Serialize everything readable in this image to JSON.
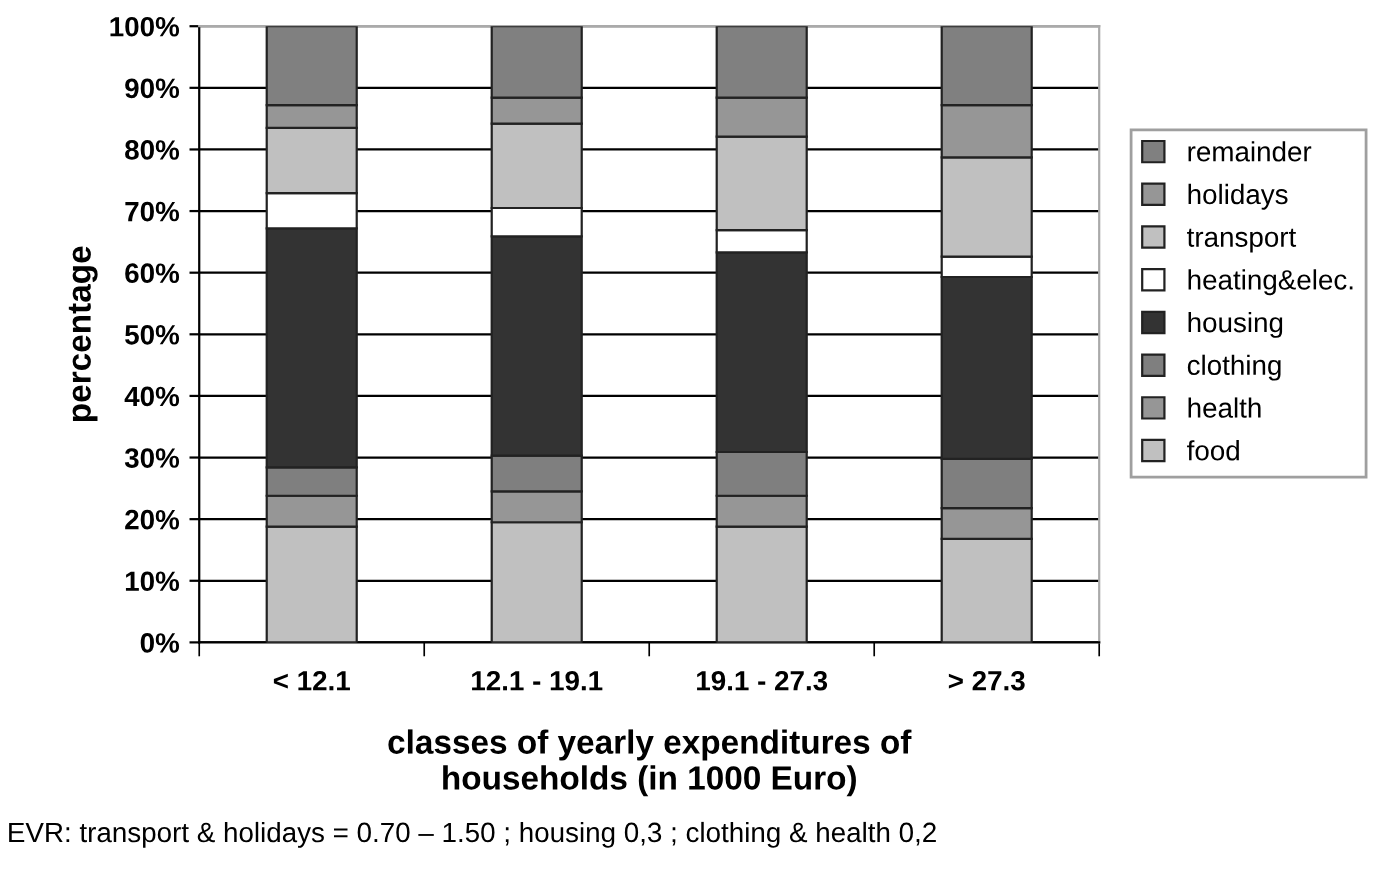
{
  "chart_data": {
    "type": "bar",
    "stacked": true,
    "xlabel": "classes of yearly expenditures of\nhouseholds (in 1000 Euro)",
    "ylabel": "percentage",
    "categories": [
      "< 12.1",
      "12.1 - 19.1",
      "19.1 - 27.3",
      "> 27.3"
    ],
    "series": [
      {
        "name": "food",
        "color": "#c0c0c0",
        "values": [
          18.8,
          19.5,
          18.8,
          16.8
        ]
      },
      {
        "name": "health",
        "color": "#969696",
        "values": [
          5.0,
          5.0,
          5.0,
          5.0
        ]
      },
      {
        "name": "clothing",
        "color": "#7f7f7f",
        "values": [
          4.6,
          5.8,
          7.1,
          8.0
        ]
      },
      {
        "name": "housing",
        "color": "#333333",
        "values": [
          38.8,
          35.6,
          32.4,
          29.5
        ]
      },
      {
        "name": "heating&elec.",
        "color": "#ffffff",
        "values": [
          5.7,
          4.6,
          3.6,
          3.3
        ]
      },
      {
        "name": "transport",
        "color": "#c0c0c0",
        "values": [
          10.6,
          13.7,
          15.2,
          16.1
        ]
      },
      {
        "name": "holidays",
        "color": "#969696",
        "values": [
          3.7,
          4.2,
          6.3,
          8.5
        ]
      },
      {
        "name": "remainder",
        "color": "#808080",
        "values": [
          12.8,
          11.6,
          11.6,
          12.8
        ]
      }
    ],
    "ylim": [
      0,
      100
    ],
    "yticks": [
      {
        "value": 0,
        "label": "0%"
      },
      {
        "value": 10,
        "label": "10%"
      },
      {
        "value": 20,
        "label": "20%"
      },
      {
        "value": 30,
        "label": "30%"
      },
      {
        "value": 40,
        "label": "40%"
      },
      {
        "value": 50,
        "label": "50%"
      },
      {
        "value": 60,
        "label": "60%"
      },
      {
        "value": 70,
        "label": "70%"
      },
      {
        "value": 80,
        "label": "80%"
      },
      {
        "value": 90,
        "label": "90%"
      },
      {
        "value": 100,
        "label": "100%"
      }
    ],
    "grid": "y",
    "legend": "right",
    "annotations": [
      "EVR: transport & holidays = 0.70 – 1.50 ; housing 0,3 ; clothing & health 0,2"
    ]
  }
}
